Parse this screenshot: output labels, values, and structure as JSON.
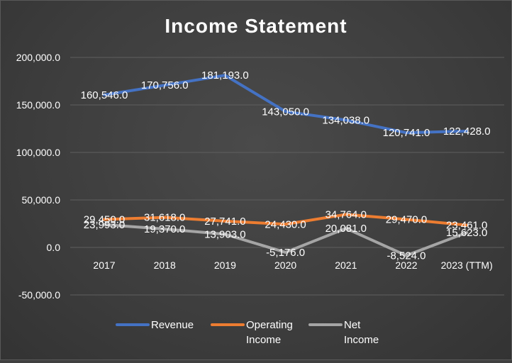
{
  "chart_data": {
    "type": "line",
    "title": "Income Statement",
    "categories": [
      "2017",
      "2018",
      "2019",
      "2020",
      "2021",
      "2022",
      "2023 (TTM)"
    ],
    "ylim": [
      -50000,
      200000
    ],
    "yticks": [
      -50000,
      0,
      50000,
      100000,
      150000,
      200000
    ],
    "ytick_labels": [
      "-50,000.0",
      "0.0",
      "50,000.0",
      "100,000.0",
      "150,000.0",
      "200,000.0"
    ],
    "grid": true,
    "legend_position": "bottom",
    "series": [
      {
        "name": "Revenue",
        "color": "#4472C4",
        "values": [
          160546.0,
          170756.0,
          181193.0,
          143050.0,
          134038.0,
          120741.0,
          122428.0
        ],
        "labels": [
          "160,546.0",
          "170,756.0",
          "181,193.0",
          "143,050.0",
          "134,038.0",
          "120,741.0",
          "122,428.0"
        ]
      },
      {
        "name": "Operating Income",
        "color": "#ED7D31",
        "values": [
          29450.0,
          31618.0,
          27741.0,
          24430.0,
          34764.0,
          29470.0,
          23461.0
        ],
        "labels": [
          "29,450.0",
          "31,618.0",
          "27,741.0",
          "24,430.0",
          "34,764.0",
          "29,470.0",
          "23,461.0"
        ]
      },
      {
        "name": "Net Income",
        "color": "#A5A5A5",
        "values": [
          23993.0,
          19370.0,
          13903.0,
          -5176.0,
          20081.0,
          -8524.0,
          15623.0
        ],
        "labels": [
          "23,993.0",
          "19,370.0",
          "13,903.0",
          "-5,176.0",
          "20,081.0",
          "-8,524.0",
          "15,623.0"
        ]
      }
    ]
  }
}
